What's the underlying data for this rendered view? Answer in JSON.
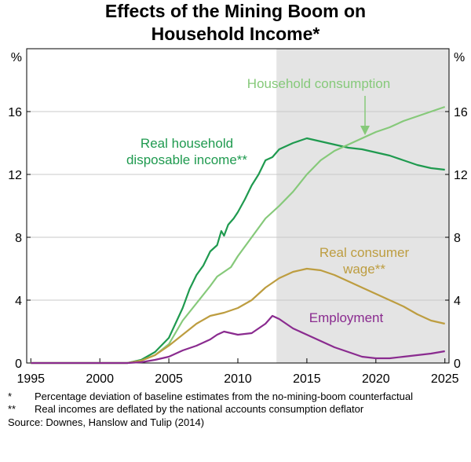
{
  "title_line1": "Effects of the Mining Boom on",
  "title_line2": "Household Income*",
  "footnotes": [
    {
      "mark": "*",
      "text": "Percentage deviation of baseline estimates from the no-mining-boom counterfactual"
    },
    {
      "mark": "**",
      "text": "Real incomes are deflated by the national accounts consumption deflator"
    }
  ],
  "source": "Source: Downes, Hanslow and Tulip (2014)",
  "chart_data": {
    "type": "line",
    "title": "Effects of the Mining Boom on Household Income*",
    "ylabel_left": "%",
    "ylabel_right": "%",
    "xlim": [
      1994.7,
      2025.3
    ],
    "ylim": [
      0,
      20
    ],
    "xticks": [
      1995,
      2000,
      2005,
      2010,
      2015,
      2020,
      2025
    ],
    "yticks": [
      0,
      4,
      8,
      12,
      16
    ],
    "grid": "horizontal",
    "shaded_region": {
      "from": 2012.8,
      "to": 2025.3,
      "color": "#e4e4e4"
    },
    "series": [
      {
        "name": "Real household disposable income**",
        "color": "#1f9a4f",
        "label_lines": [
          "Real household",
          "disposable income**"
        ],
        "points": [
          [
            1995,
            0
          ],
          [
            2002,
            0
          ],
          [
            2003,
            0.2
          ],
          [
            2004,
            0.7
          ],
          [
            2005,
            1.6
          ],
          [
            2006,
            3.5
          ],
          [
            2006.5,
            4.7
          ],
          [
            2007,
            5.6
          ],
          [
            2007.5,
            6.2
          ],
          [
            2008,
            7.1
          ],
          [
            2008.5,
            7.5
          ],
          [
            2008.8,
            8.4
          ],
          [
            2009,
            8.1
          ],
          [
            2009.3,
            8.8
          ],
          [
            2009.7,
            9.2
          ],
          [
            2010,
            9.6
          ],
          [
            2010.5,
            10.4
          ],
          [
            2011,
            11.3
          ],
          [
            2011.5,
            12.0
          ],
          [
            2012,
            12.9
          ],
          [
            2012.5,
            13.1
          ],
          [
            2013,
            13.6
          ],
          [
            2014,
            14.0
          ],
          [
            2015,
            14.3
          ],
          [
            2016,
            14.1
          ],
          [
            2017,
            13.9
          ],
          [
            2018,
            13.7
          ],
          [
            2019,
            13.6
          ],
          [
            2020,
            13.4
          ],
          [
            2021,
            13.2
          ],
          [
            2022,
            12.9
          ],
          [
            2023,
            12.6
          ],
          [
            2024,
            12.4
          ],
          [
            2025,
            12.3
          ]
        ]
      },
      {
        "name": "Household consumption",
        "color": "#86c97a",
        "label_lines": [
          "Household consumption"
        ],
        "points": [
          [
            1995,
            0
          ],
          [
            2002,
            0
          ],
          [
            2003,
            0.15
          ],
          [
            2004,
            0.5
          ],
          [
            2005,
            1.2
          ],
          [
            2006,
            2.7
          ],
          [
            2007,
            3.8
          ],
          [
            2008,
            4.9
          ],
          [
            2008.5,
            5.5
          ],
          [
            2009,
            5.8
          ],
          [
            2009.5,
            6.1
          ],
          [
            2010,
            6.8
          ],
          [
            2011,
            8.0
          ],
          [
            2012,
            9.2
          ],
          [
            2013,
            10.0
          ],
          [
            2014,
            10.9
          ],
          [
            2015,
            12.0
          ],
          [
            2016,
            12.9
          ],
          [
            2017,
            13.5
          ],
          [
            2018,
            13.9
          ],
          [
            2019,
            14.3
          ],
          [
            2020,
            14.7
          ],
          [
            2021,
            15.0
          ],
          [
            2022,
            15.4
          ],
          [
            2023,
            15.7
          ],
          [
            2024,
            16.0
          ],
          [
            2025,
            16.3
          ]
        ]
      },
      {
        "name": "Real consumer wage**",
        "color": "#bd9d40",
        "label_lines": [
          "Real consumer",
          "wage**"
        ],
        "points": [
          [
            1995,
            0
          ],
          [
            2002,
            0
          ],
          [
            2003,
            0.15
          ],
          [
            2004,
            0.5
          ],
          [
            2005,
            1.1
          ],
          [
            2006,
            1.8
          ],
          [
            2007,
            2.5
          ],
          [
            2008,
            3.0
          ],
          [
            2009,
            3.2
          ],
          [
            2010,
            3.5
          ],
          [
            2011,
            4.0
          ],
          [
            2012,
            4.8
          ],
          [
            2013,
            5.4
          ],
          [
            2014,
            5.8
          ],
          [
            2015,
            6.0
          ],
          [
            2016,
            5.9
          ],
          [
            2017,
            5.6
          ],
          [
            2018,
            5.2
          ],
          [
            2019,
            4.8
          ],
          [
            2020,
            4.4
          ],
          [
            2021,
            4.0
          ],
          [
            2022,
            3.6
          ],
          [
            2023,
            3.1
          ],
          [
            2024,
            2.7
          ],
          [
            2025,
            2.5
          ]
        ]
      },
      {
        "name": "Employment",
        "color": "#8a2b8f",
        "label_lines": [
          "Employment"
        ],
        "points": [
          [
            1995,
            0
          ],
          [
            2002,
            0
          ],
          [
            2003,
            0.05
          ],
          [
            2004,
            0.2
          ],
          [
            2005,
            0.4
          ],
          [
            2006,
            0.8
          ],
          [
            2007,
            1.1
          ],
          [
            2008,
            1.5
          ],
          [
            2008.5,
            1.8
          ],
          [
            2009,
            2.0
          ],
          [
            2010,
            1.8
          ],
          [
            2011,
            1.9
          ],
          [
            2012,
            2.5
          ],
          [
            2012.5,
            3.0
          ],
          [
            2013,
            2.8
          ],
          [
            2014,
            2.2
          ],
          [
            2015,
            1.8
          ],
          [
            2016,
            1.4
          ],
          [
            2017,
            1.0
          ],
          [
            2018,
            0.7
          ],
          [
            2019,
            0.4
          ],
          [
            2020,
            0.3
          ],
          [
            2021,
            0.3
          ],
          [
            2022,
            0.4
          ],
          [
            2023,
            0.5
          ],
          [
            2024,
            0.6
          ],
          [
            2025,
            0.75
          ]
        ]
      }
    ]
  }
}
